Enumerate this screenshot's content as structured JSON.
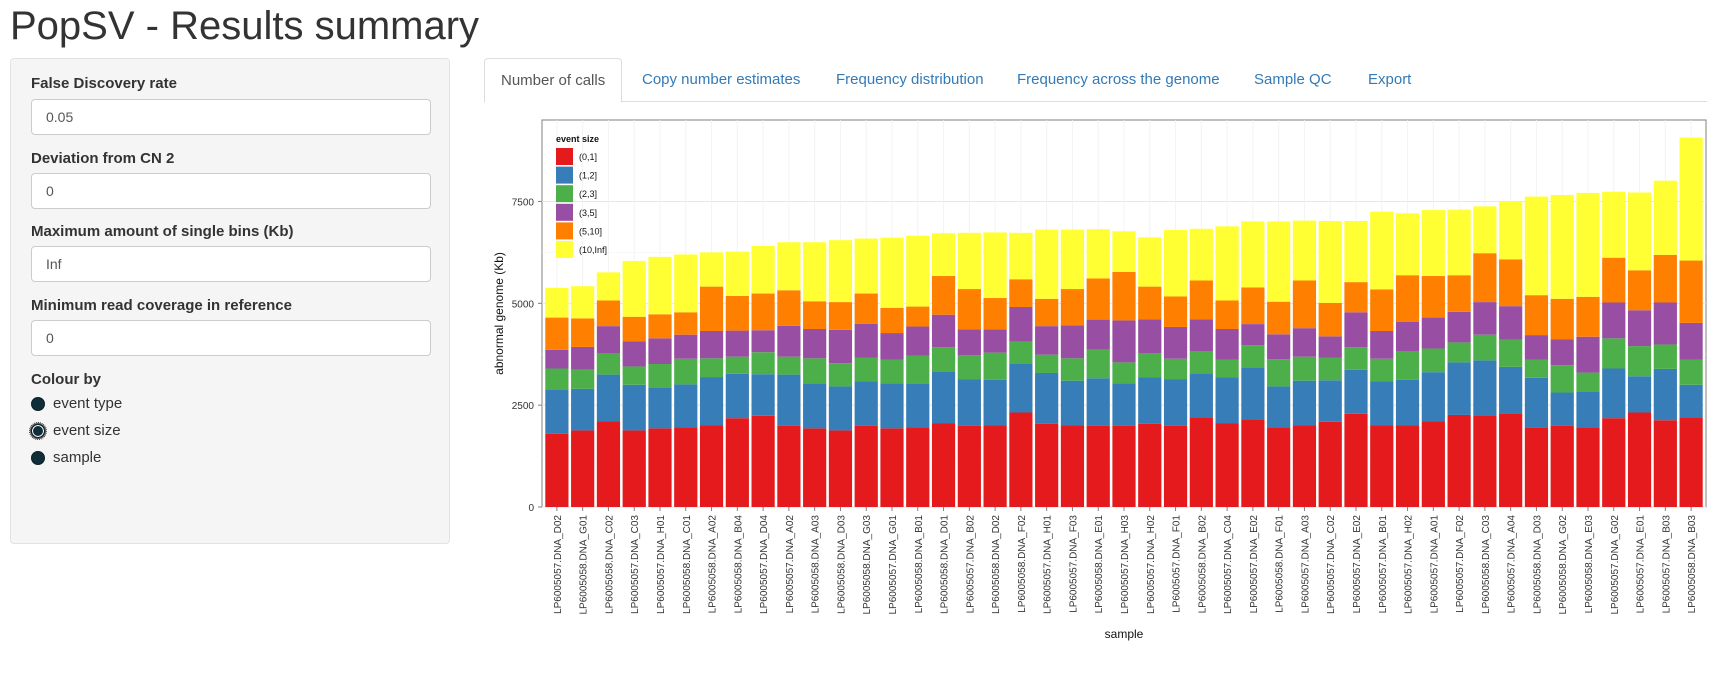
{
  "app": {
    "title": "PopSV - Results summary"
  },
  "sidebar": {
    "fdr": {
      "label": "False Discovery rate",
      "value": "0.05"
    },
    "deviation": {
      "label": "Deviation from CN 2",
      "value": "0"
    },
    "max_single_bins": {
      "label": "Maximum amount of single bins (Kb)",
      "value": "Inf"
    },
    "min_coverage": {
      "label": "Minimum read coverage in reference",
      "value": "0"
    },
    "colour_by": {
      "label": "Colour by",
      "options": [
        "event type",
        "event size",
        "sample"
      ],
      "selected": "event size"
    }
  },
  "tabs": [
    {
      "label": "Number of calls",
      "active": true
    },
    {
      "label": "Copy number estimates",
      "active": false
    },
    {
      "label": "Frequency distribution",
      "active": false
    },
    {
      "label": "Frequency across the genome",
      "active": false
    },
    {
      "label": "Sample QC",
      "active": false
    },
    {
      "label": "Export",
      "active": false
    }
  ],
  "chart_data": {
    "type": "bar",
    "stacked": true,
    "xlabel": "sample",
    "ylabel": "abnormal genome (Kb)",
    "ylim": [
      0,
      9500
    ],
    "yticks": [
      0,
      2500,
      5000,
      7500
    ],
    "grid": true,
    "legend": {
      "title": "event size",
      "position": "top-left"
    },
    "categories": [
      "LP6005057.DNA_D02",
      "LP6005058.DNA_G01",
      "LP6005058.DNA_C02",
      "LP6005057.DNA_C03",
      "LP6005057.DNA_H01",
      "LP6005058.DNA_C01",
      "LP6005058.DNA_A02",
      "LP6005058.DNA_B04",
      "LP6005057.DNA_D04",
      "LP6005057.DNA_A02",
      "LP6005058.DNA_A03",
      "LP6005058.DNA_D03",
      "LP6005058.DNA_G03",
      "LP6005057.DNA_G01",
      "LP6005058.DNA_B01",
      "LP6005058.DNA_D01",
      "LP6005057.DNA_B02",
      "LP6005058.DNA_D02",
      "LP6005058.DNA_F02",
      "LP6005057.DNA_H01",
      "LP6005057.DNA_F03",
      "LP6005058.DNA_E01",
      "LP6005057.DNA_H03",
      "LP6005057.DNA_H02",
      "LP6005057.DNA_F01",
      "LP6005058.DNA_B02",
      "LP6005057.DNA_C04",
      "LP6005057.DNA_E02",
      "LP6005058.DNA_F01",
      "LP6005057.DNA_A03",
      "LP6005057.DNA_C02",
      "LP6005057.DNA_E02",
      "LP6005057.DNA_B01",
      "LP6005057.DNA_H02",
      "LP6005057.DNA_A01",
      "LP6005057.DNA_F02",
      "LP6005058.DNA_C03",
      "LP6005057.DNA_A04",
      "LP6005058.DNA_D03",
      "LP6005058.DNA_G02",
      "LP6005058.DNA_E03",
      "LP6005057.DNA_G02",
      "LP6005057.DNA_E01",
      "LP6005057.DNA_B03",
      "LP6005058.DNA_B03"
    ],
    "series": [
      {
        "name": "(0,1]",
        "color": "#e41a1c",
        "values": [
          1800,
          1880,
          2100,
          1880,
          1930,
          1960,
          2000,
          2180,
          2240,
          1990,
          1930,
          1880,
          1990,
          1930,
          1960,
          2060,
          1990,
          2010,
          2320,
          2040,
          2010,
          1990,
          1990,
          2040,
          1990,
          2200,
          2060,
          2150,
          1960,
          2010,
          2090,
          2290,
          2010,
          2010,
          2100,
          2260,
          2250,
          2300,
          1940,
          1990,
          1950,
          2180,
          2320,
          2130,
          2200
        ]
      },
      {
        "name": "(1,2]",
        "color": "#377eb8",
        "values": [
          1090,
          1020,
          1150,
          1120,
          1010,
          1050,
          1190,
          1090,
          1020,
          1260,
          1100,
          1080,
          1090,
          1110,
          1060,
          1270,
          1140,
          1110,
          1210,
          1250,
          1090,
          1170,
          1050,
          1140,
          1150,
          1080,
          1120,
          1280,
          1000,
          1090,
          1020,
          1080,
          1070,
          1110,
          1210,
          1290,
          1350,
          1140,
          1230,
          820,
          890,
          1220,
          890,
          1260,
          800
        ]
      },
      {
        "name": "(2,3]",
        "color": "#4daf4a",
        "values": [
          510,
          470,
          520,
          450,
          570,
          630,
          460,
          420,
          540,
          440,
          620,
          570,
          590,
          580,
          690,
          590,
          600,
          670,
          530,
          450,
          550,
          700,
          510,
          600,
          500,
          540,
          440,
          540,
          670,
          590,
          560,
          550,
          560,
          710,
          580,
          490,
          630,
          670,
          450,
          670,
          460,
          740,
          740,
          600,
          620
        ]
      },
      {
        "name": "(3,5]",
        "color": "#984ea3",
        "values": [
          460,
          560,
          670,
          620,
          630,
          590,
          670,
          640,
          540,
          760,
          720,
          820,
          830,
          650,
          720,
          800,
          630,
          570,
          850,
          700,
          810,
          740,
          1030,
          830,
          780,
          790,
          750,
          520,
          610,
          700,
          520,
          860,
          680,
          720,
          760,
          750,
          800,
          820,
          600,
          640,
          880,
          880,
          880,
          1030,
          900
        ]
      },
      {
        "name": "(5,10]",
        "color": "#ff7f00",
        "values": [
          790,
          700,
          630,
          600,
          590,
          550,
          1090,
          850,
          900,
          870,
          680,
          680,
          740,
          620,
          490,
          950,
          990,
          770,
          680,
          670,
          890,
          1010,
          1190,
          800,
          750,
          950,
          700,
          900,
          800,
          1170,
          820,
          740,
          1020,
          1140,
          1020,
          900,
          1200,
          1150,
          980,
          990,
          980,
          1100,
          980,
          1170,
          1530
        ]
      },
      {
        "name": "(10,Inf]",
        "color": "#ffff33",
        "values": [
          730,
          790,
          690,
          1370,
          1410,
          1420,
          840,
          1090,
          1170,
          1180,
          1450,
          1520,
          1350,
          1720,
          1740,
          1050,
          1380,
          1610,
          1140,
          1700,
          1460,
          1210,
          1000,
          1210,
          1630,
          1270,
          1820,
          1620,
          1970,
          1470,
          2010,
          1500,
          1910,
          1520,
          1620,
          1610,
          1150,
          1420,
          2420,
          2550,
          2550,
          1620,
          1910,
          1820,
          3020
        ]
      }
    ]
  }
}
